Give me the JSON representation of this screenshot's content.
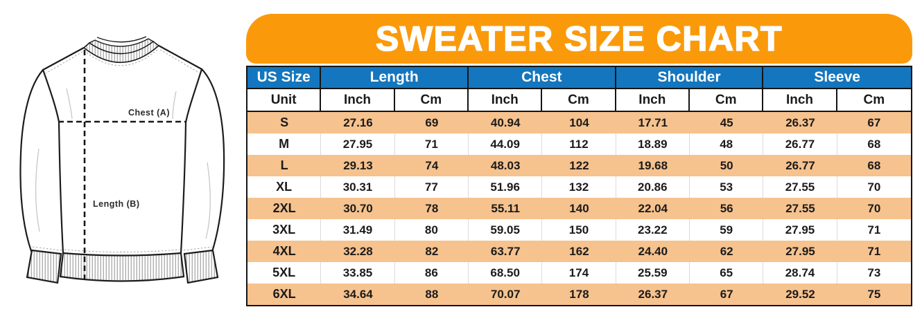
{
  "chart_data": {
    "type": "table",
    "title": "SWEATER SIZE CHART",
    "column_groups": [
      {
        "label": "US Size",
        "span": 1
      },
      {
        "label": "Length",
        "span": 2
      },
      {
        "label": "Chest",
        "span": 2
      },
      {
        "label": "Shoulder",
        "span": 2
      },
      {
        "label": "Sleeve",
        "span": 2
      }
    ],
    "unit_row": [
      "Unit",
      "Inch",
      "Cm",
      "Inch",
      "Cm",
      "Inch",
      "Cm",
      "Inch",
      "Cm"
    ],
    "rows": [
      [
        "S",
        "27.16",
        "69",
        "40.94",
        "104",
        "17.71",
        "45",
        "26.37",
        "67"
      ],
      [
        "M",
        "27.95",
        "71",
        "44.09",
        "112",
        "18.89",
        "48",
        "26.77",
        "68"
      ],
      [
        "L",
        "29.13",
        "74",
        "48.03",
        "122",
        "19.68",
        "50",
        "26.77",
        "68"
      ],
      [
        "XL",
        "30.31",
        "77",
        "51.96",
        "132",
        "20.86",
        "53",
        "27.55",
        "70"
      ],
      [
        "2XL",
        "30.70",
        "78",
        "55.11",
        "140",
        "22.04",
        "56",
        "27.55",
        "70"
      ],
      [
        "3XL",
        "31.49",
        "80",
        "59.05",
        "150",
        "23.22",
        "59",
        "27.95",
        "71"
      ],
      [
        "4XL",
        "32.28",
        "82",
        "63.77",
        "162",
        "24.40",
        "62",
        "27.95",
        "71"
      ],
      [
        "5XL",
        "33.85",
        "86",
        "68.50",
        "174",
        "25.59",
        "65",
        "28.74",
        "73"
      ],
      [
        "6XL",
        "34.64",
        "88",
        "70.07",
        "178",
        "26.37",
        "67",
        "29.52",
        "75"
      ]
    ]
  },
  "diagram": {
    "chest_label": "Chest (A)",
    "length_label": "Length (B)"
  },
  "colors": {
    "banner_orange": "#FA9A0B",
    "header_blue": "#1476BE",
    "row_orange": "#F6C28E",
    "border_black": "#141414",
    "text_dark": "#1B1B1B",
    "separator_gray": "#DADADA"
  }
}
